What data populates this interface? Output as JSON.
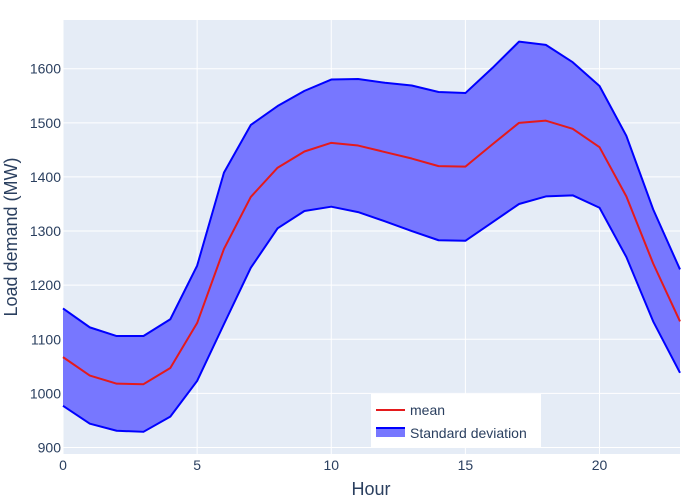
{
  "chart_data": {
    "type": "line",
    "title": "",
    "xlabel": "Hour",
    "ylabel": "Load demand (MW)",
    "xlim": [
      0,
      23
    ],
    "ylim": [
      888,
      1690
    ],
    "x_ticks": [
      0,
      5,
      10,
      15,
      20
    ],
    "y_ticks": [
      900,
      1000,
      1100,
      1200,
      1300,
      1400,
      1500,
      1600
    ],
    "grid": true,
    "legend_position": "bottom-center",
    "x": [
      0,
      1,
      2,
      3,
      4,
      5,
      6,
      7,
      8,
      9,
      10,
      11,
      12,
      13,
      14,
      15,
      16,
      17,
      18,
      19,
      20,
      21,
      22,
      23
    ],
    "series": [
      {
        "name": "mean",
        "color": "#e41a1c",
        "values": [
          1067,
          1033,
          1018,
          1017,
          1047,
          1130,
          1267,
          1363,
          1417,
          1447,
          1463,
          1458,
          1446,
          1434,
          1420,
          1419,
          1460,
          1500,
          1504,
          1489,
          1455,
          1364,
          1240,
          1133
        ]
      },
      {
        "name": "Standard deviation",
        "type": "band",
        "color": "#0000ff",
        "fill": "#7777ff",
        "upper": [
          1157,
          1122,
          1106,
          1106,
          1137,
          1236,
          1408,
          1496,
          1531,
          1559,
          1580,
          1581,
          1574,
          1569,
          1557,
          1555,
          1601,
          1650,
          1644,
          1612,
          1568,
          1476,
          1340,
          1229
        ],
        "lower": [
          977,
          944,
          931,
          929,
          957,
          1023,
          1128,
          1232,
          1305,
          1337,
          1345,
          1335,
          1318,
          1300,
          1283,
          1282,
          1316,
          1350,
          1364,
          1366,
          1343,
          1252,
          1133,
          1038
        ]
      }
    ]
  }
}
